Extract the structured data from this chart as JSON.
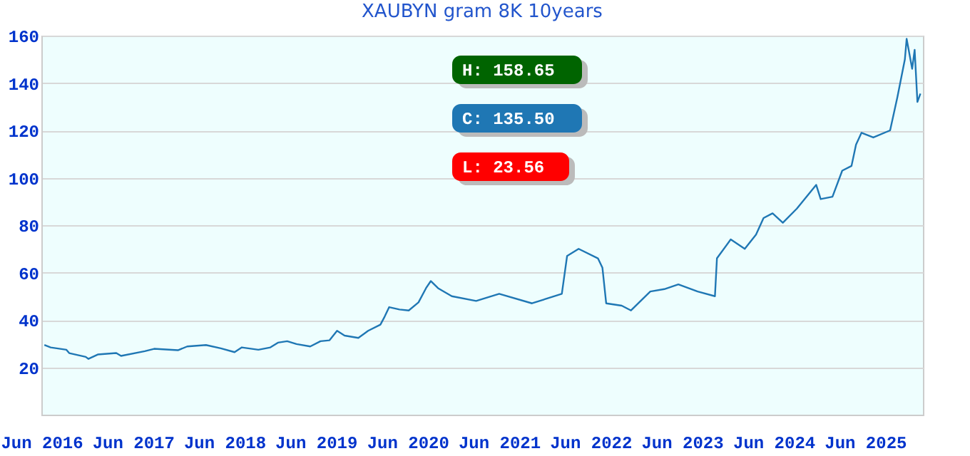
{
  "chart_data": {
    "type": "line",
    "title": "XAUBYN gram 8K 10years",
    "annotations": [
      "H: 158.65",
      "C: 135.50",
      "L: 23.56"
    ],
    "x": [
      "2016-06-13",
      "2016-07-08",
      "2016-09-09",
      "2016-09-20",
      "2016-11-25",
      "2016-12-06",
      "2017-01-12",
      "2017-03-27",
      "2017-04-15",
      "2017-07-19",
      "2017-08-25",
      "2017-11-28",
      "2018-01-04",
      "2018-03-20",
      "2018-05-18",
      "2018-07-12",
      "2018-08-10",
      "2018-10-15",
      "2018-12-02",
      "2019-01-01",
      "2019-02-07",
      "2019-03-16",
      "2019-05-10",
      "2019-06-20",
      "2019-07-26",
      "2019-08-25",
      "2019-09-24",
      "2019-11-18",
      "2019-12-27",
      "2020-02-14",
      "2020-03-02",
      "2020-03-20",
      "2020-04-30",
      "2020-06-06",
      "2020-07-15",
      "2020-08-14",
      "2020-09-02",
      "2020-10-01",
      "2020-11-25",
      "2021-03-02",
      "2021-06-02",
      "2021-10-11",
      "2022-02-07",
      "2022-02-28",
      "2022-04-15",
      "2022-07-01",
      "2022-07-19",
      "2022-08-03",
      "2022-10-04",
      "2022-11-10",
      "2023-01-26",
      "2023-03-23",
      "2023-05-18",
      "2023-08-03",
      "2023-10-11",
      "2023-10-19",
      "2023-12-13",
      "2024-02-07",
      "2024-03-23",
      "2024-04-22",
      "2024-05-28",
      "2024-07-08",
      "2024-09-02",
      "2024-11-18",
      "2024-12-06",
      "2025-01-22",
      "2025-03-02",
      "2025-04-08",
      "2025-04-26",
      "2025-05-18",
      "2025-07-04",
      "2025-09-09",
      "2025-10-08",
      "2025-11-07",
      "2025-11-14",
      "2025-12-06",
      "2025-12-16",
      "2025-12-27",
      "2026-01-08"
    ],
    "series": [
      {
        "color": "#1f77b4",
        "values": [
          29.4,
          28.4,
          27.4,
          26,
          24.4,
          23.56,
          25.4,
          26,
          24.8,
          26.8,
          27.8,
          27.2,
          28.8,
          29.4,
          28,
          26.4,
          28.4,
          27.4,
          28.4,
          30.4,
          31,
          29.8,
          28.8,
          31,
          31.4,
          35.4,
          33.4,
          32.4,
          35.4,
          38,
          41.4,
          45.4,
          44.4,
          44,
          47.4,
          53.4,
          56.4,
          53.4,
          50,
          48,
          51,
          47,
          51,
          67,
          70,
          66,
          62,
          47,
          46,
          44,
          52,
          53,
          55,
          52,
          50,
          66,
          74,
          70,
          76,
          83,
          85,
          81,
          87,
          97,
          91,
          92,
          103,
          105,
          114,
          119,
          117,
          120,
          134,
          150,
          158.65,
          146,
          154,
          132,
          135.5
        ]
      }
    ],
    "xlim": [
      "2016-06-01",
      "2026-01-18"
    ],
    "xticks": [
      {
        "value": "2016-06-01",
        "label": "Jun 2016"
      },
      {
        "value": "2017-06-01",
        "label": "Jun 2017"
      },
      {
        "value": "2018-06-01",
        "label": "Jun 2018"
      },
      {
        "value": "2019-06-01",
        "label": "Jun 2019"
      },
      {
        "value": "2020-06-01",
        "label": "Jun 2020"
      },
      {
        "value": "2021-06-01",
        "label": "Jun 2021"
      },
      {
        "value": "2022-06-01",
        "label": "Jun 2022"
      },
      {
        "value": "2023-06-01",
        "label": "Jun 2023"
      },
      {
        "value": "2024-06-01",
        "label": "Jun 2024"
      },
      {
        "value": "2025-06-01",
        "label": "Jun 2025"
      }
    ],
    "ylim": [
      0,
      160
    ],
    "yticks": [
      20,
      40,
      60,
      80,
      100,
      120,
      140,
      160
    ],
    "grid": "y",
    "legend": false,
    "marker": "none",
    "line_style": "solid"
  }
}
